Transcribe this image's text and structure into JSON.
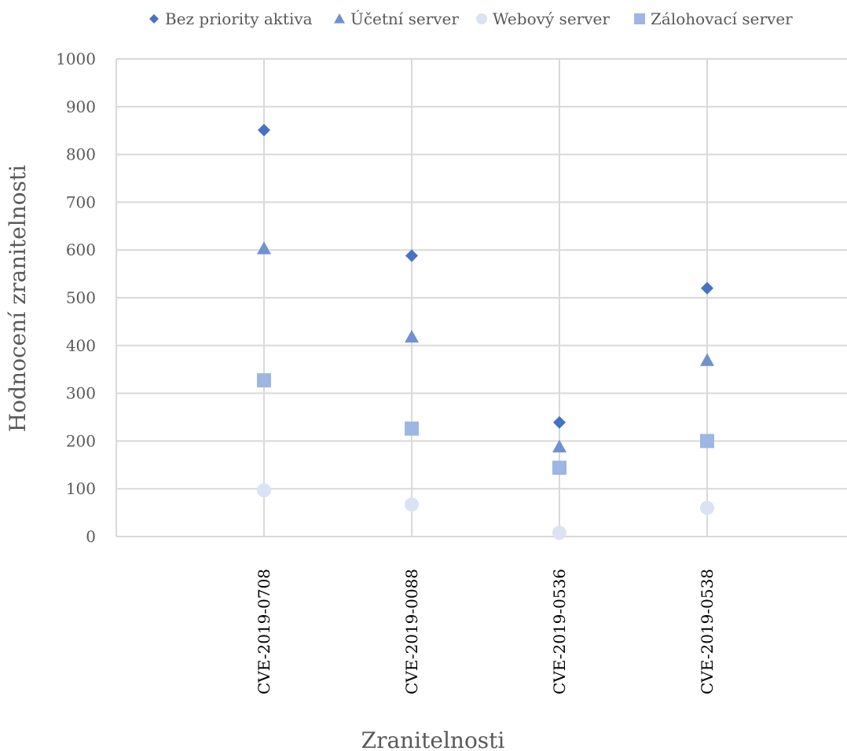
{
  "chart_data": {
    "type": "scatter",
    "xlabel": "Zranitelnosti",
    "ylabel": "Hodnocení zranitelnosti",
    "ylim": [
      0,
      1000
    ],
    "ytick_step": 100,
    "categories": [
      "CVE-2019-0708",
      "CVE-2019-0088",
      "CVE-2019-0536",
      "CVE-2019-0538"
    ],
    "grid": true,
    "legend_position": "top",
    "series": [
      {
        "name": "Bez priority aktiva",
        "marker": "diamond",
        "color": "#4472C4",
        "values": [
          851,
          588,
          239,
          520
        ]
      },
      {
        "name": "Účetní server",
        "marker": "triangle",
        "color": "#6E92D0",
        "values": [
          603,
          418,
          188,
          369
        ]
      },
      {
        "name": "Webový server",
        "marker": "circle",
        "color": "#DAE3F3",
        "values": [
          97,
          67,
          8,
          60
        ]
      },
      {
        "name": "Zálohovací server",
        "marker": "square",
        "color": "#9DB6E3",
        "values": [
          327,
          226,
          144,
          200
        ]
      }
    ]
  }
}
